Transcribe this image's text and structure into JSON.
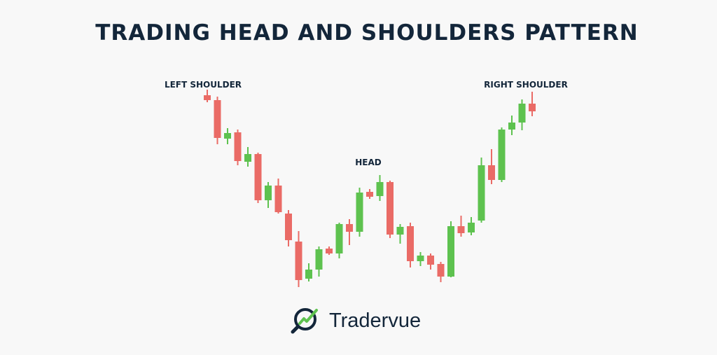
{
  "chart_data": {
    "type": "candlestick",
    "title": "TRADING HEAD AND SHOULDERS PATTERN",
    "annotations": [
      "LEFT SHOULDER",
      "HEAD",
      "RIGHT SHOULDER"
    ],
    "up_color": "#5ec24f",
    "down_color": "#ea6b66",
    "ylim": [
      0,
      310
    ],
    "open": [
      294,
      287,
      232,
      241,
      199,
      210,
      144,
      165,
      125,
      85,
      32,
      45,
      75,
      68,
      110,
      99,
      156,
      150,
      170,
      95,
      107,
      57,
      65,
      53,
      35,
      107,
      98,
      115,
      194,
      173,
      245,
      255,
      282
    ],
    "high": [
      302,
      292,
      247,
      245,
      220,
      212,
      170,
      175,
      130,
      100,
      54,
      78,
      78,
      112,
      117,
      162,
      160,
      180,
      172,
      110,
      112,
      70,
      68,
      56,
      114,
      122,
      120,
      205,
      217,
      248,
      265,
      288,
      299
    ],
    "low": [
      284,
      224,
      224,
      194,
      192,
      140,
      133,
      125,
      78,
      20,
      28,
      35,
      66,
      61,
      80,
      92,
      146,
      143,
      90,
      82,
      48,
      50,
      45,
      27,
      34,
      92,
      94,
      112,
      167,
      170,
      237,
      244,
      264
    ],
    "close": [
      287,
      233,
      240,
      200,
      210,
      144,
      165,
      127,
      87,
      30,
      45,
      74,
      68,
      110,
      99,
      155,
      149,
      170,
      95,
      106,
      57,
      65,
      52,
      35,
      107,
      97,
      112,
      194,
      173,
      245,
      255,
      282,
      271
    ]
  },
  "footer": {
    "brand": "Tradervue"
  }
}
